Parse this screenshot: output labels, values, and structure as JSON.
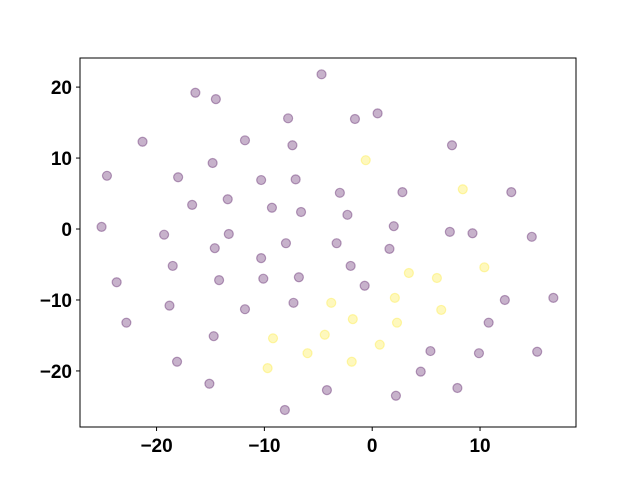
{
  "chart_data": {
    "type": "scatter",
    "title": "",
    "xlabel": "",
    "ylabel": "",
    "xlim": [
      -27.1,
      18.9
    ],
    "ylim": [
      -27.9,
      24.1
    ],
    "grid": false,
    "xticks": [
      -20,
      -10,
      0,
      10
    ],
    "yticks": [
      -20,
      -10,
      0,
      10,
      20
    ],
    "xtick_labels": [
      "−20",
      "−10",
      "0",
      "10"
    ],
    "ytick_labels": [
      "−20",
      "−10",
      "0",
      "10",
      "20"
    ],
    "colors": {
      "class_0": "#440154",
      "class_1": "#fde725"
    },
    "alpha": 0.3,
    "series": [
      {
        "color": "#440154",
        "points": [
          [
            -4.7,
            21.8
          ],
          [
            -16.4,
            19.2
          ],
          [
            -14.5,
            18.3
          ],
          [
            -7.8,
            15.6
          ],
          [
            0.5,
            16.3
          ],
          [
            -1.6,
            15.5
          ],
          [
            -21.3,
            12.3
          ],
          [
            -11.8,
            12.5
          ],
          [
            -7.4,
            11.8
          ],
          [
            7.4,
            11.8
          ],
          [
            -14.8,
            9.3
          ],
          [
            -24.6,
            7.5
          ],
          [
            -18.0,
            7.3
          ],
          [
            -10.3,
            6.9
          ],
          [
            -7.1,
            7.0
          ],
          [
            -3.0,
            5.1
          ],
          [
            2.8,
            5.2
          ],
          [
            12.9,
            5.2
          ],
          [
            -13.4,
            4.2
          ],
          [
            -16.7,
            3.4
          ],
          [
            -9.3,
            3.0
          ],
          [
            -6.6,
            2.4
          ],
          [
            -2.3,
            2.0
          ],
          [
            -25.1,
            0.3
          ],
          [
            2.0,
            0.4
          ],
          [
            7.2,
            -0.4
          ],
          [
            9.3,
            -0.6
          ],
          [
            -19.3,
            -0.8
          ],
          [
            -13.3,
            -0.7
          ],
          [
            14.8,
            -1.1
          ],
          [
            -8.0,
            -2.0
          ],
          [
            -3.3,
            -2.0
          ],
          [
            -14.6,
            -2.7
          ],
          [
            1.6,
            -2.8
          ],
          [
            -10.3,
            -4.1
          ],
          [
            -18.5,
            -5.2
          ],
          [
            -2.0,
            -5.2
          ],
          [
            -23.7,
            -7.5
          ],
          [
            -14.2,
            -7.2
          ],
          [
            -10.1,
            -7.0
          ],
          [
            -6.8,
            -6.8
          ],
          [
            -0.7,
            -8.0
          ],
          [
            16.8,
            -9.7
          ],
          [
            12.3,
            -10.0
          ],
          [
            -7.3,
            -10.4
          ],
          [
            -18.8,
            -10.8
          ],
          [
            -11.8,
            -11.3
          ],
          [
            -22.8,
            -13.2
          ],
          [
            10.8,
            -13.2
          ],
          [
            -14.7,
            -15.1
          ],
          [
            5.4,
            -17.2
          ],
          [
            9.9,
            -17.5
          ],
          [
            15.3,
            -17.3
          ],
          [
            -18.1,
            -18.7
          ],
          [
            4.5,
            -20.1
          ],
          [
            -15.1,
            -21.8
          ],
          [
            7.9,
            -22.4
          ],
          [
            -4.2,
            -22.7
          ],
          [
            2.2,
            -23.5
          ],
          [
            -8.1,
            -25.5
          ]
        ]
      },
      {
        "color": "#fde725",
        "points": [
          [
            -0.6,
            9.7
          ],
          [
            8.4,
            5.6
          ],
          [
            10.4,
            -5.4
          ],
          [
            3.4,
            -6.2
          ],
          [
            6.0,
            -6.9
          ],
          [
            2.1,
            -9.7
          ],
          [
            -3.8,
            -10.4
          ],
          [
            6.4,
            -11.4
          ],
          [
            -1.8,
            -12.7
          ],
          [
            2.3,
            -13.2
          ],
          [
            -9.2,
            -15.4
          ],
          [
            -4.4,
            -14.9
          ],
          [
            0.7,
            -16.3
          ],
          [
            -6.0,
            -17.5
          ],
          [
            -1.9,
            -18.7
          ],
          [
            -9.7,
            -19.6
          ]
        ]
      }
    ]
  }
}
